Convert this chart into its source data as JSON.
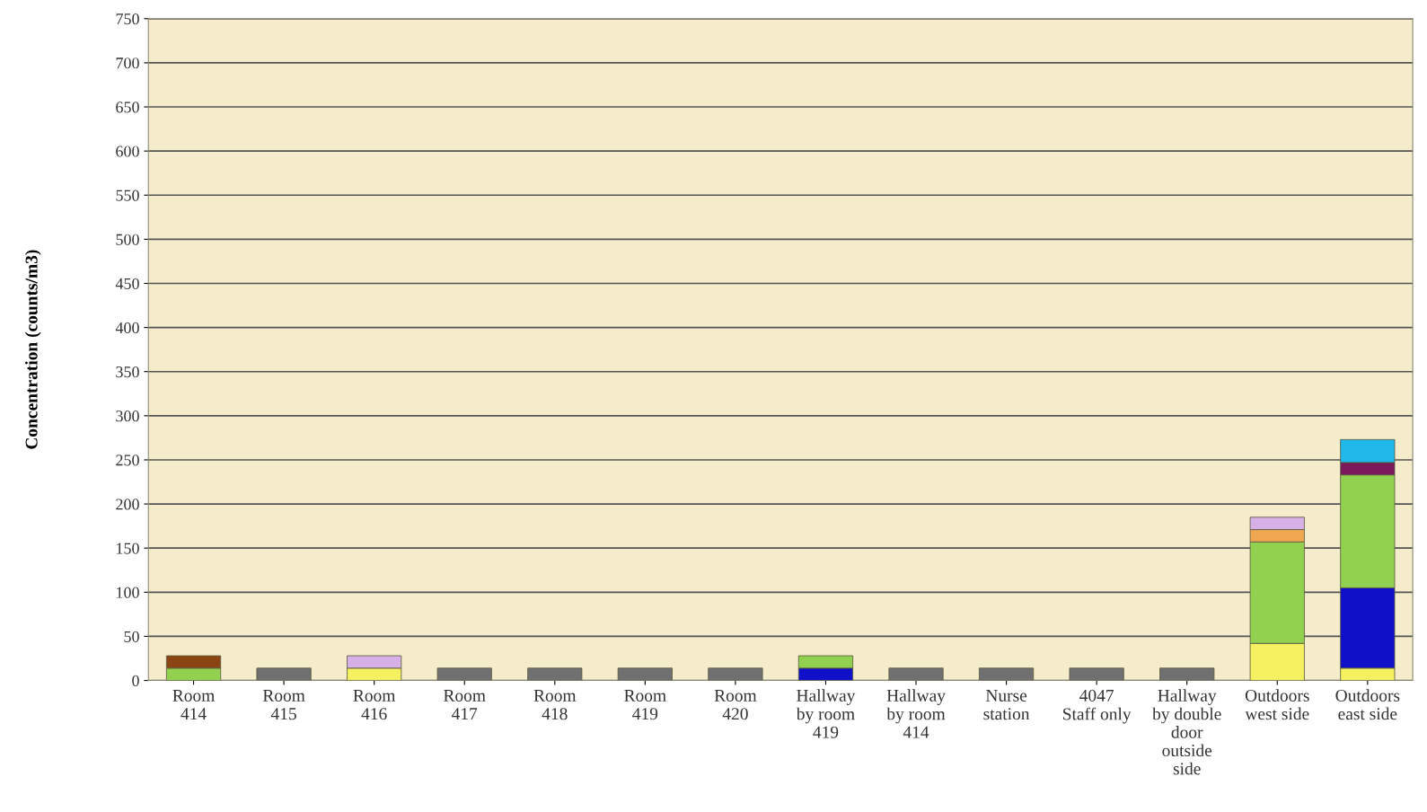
{
  "chart_data": {
    "type": "bar",
    "stacked": true,
    "ylabel": "Concentration (counts/m3)",
    "categories": [
      "Room\n414",
      "Room\n415",
      "Room\n416",
      "Room\n417",
      "Room\n418",
      "Room\n419",
      "Room\n420",
      "Hallway\nby room\n419",
      "Hallway\nby room\n414",
      "Nurse\nstation",
      "4047\nStaff only",
      "Hallway\nby double\ndoor\noutside\nside",
      "Outdoors\nwest side",
      "Outdoors\neast side"
    ],
    "series": [
      {
        "color": "#f5f060",
        "values": [
          null,
          null,
          14,
          null,
          null,
          null,
          null,
          null,
          null,
          null,
          null,
          null,
          42,
          14
        ]
      },
      {
        "color": "#1010c8",
        "values": [
          null,
          null,
          null,
          null,
          null,
          null,
          null,
          14,
          null,
          null,
          null,
          null,
          null,
          91
        ]
      },
      {
        "color": "#92d050",
        "values": [
          14,
          null,
          null,
          null,
          null,
          null,
          null,
          14,
          null,
          null,
          null,
          null,
          115,
          128
        ]
      },
      {
        "color": "#8b4513",
        "values": [
          14,
          null,
          null,
          null,
          null,
          null,
          null,
          null,
          null,
          null,
          null,
          null,
          null,
          null
        ]
      },
      {
        "color": "#f0a850",
        "values": [
          null,
          null,
          null,
          null,
          null,
          null,
          null,
          null,
          null,
          null,
          null,
          null,
          14,
          null
        ]
      },
      {
        "color": "#d8b0e8",
        "values": [
          null,
          null,
          14,
          null,
          null,
          null,
          null,
          null,
          null,
          null,
          null,
          null,
          14,
          null
        ]
      },
      {
        "color": "#7a1a5a",
        "values": [
          null,
          null,
          null,
          null,
          null,
          null,
          null,
          null,
          null,
          null,
          null,
          null,
          null,
          14
        ]
      },
      {
        "color": "#20b8e8",
        "values": [
          null,
          null,
          null,
          null,
          null,
          null,
          null,
          null,
          null,
          null,
          null,
          null,
          null,
          26
        ]
      },
      {
        "color": "#707070",
        "values": [
          null,
          14,
          null,
          14,
          14,
          14,
          14,
          null,
          14,
          14,
          14,
          14,
          null,
          null
        ]
      }
    ],
    "ylim": [
      0,
      750
    ],
    "yticks": [
      0,
      50,
      100,
      150,
      200,
      250,
      300,
      350,
      400,
      450,
      500,
      550,
      600,
      650,
      700,
      750
    ],
    "grid": "y"
  }
}
